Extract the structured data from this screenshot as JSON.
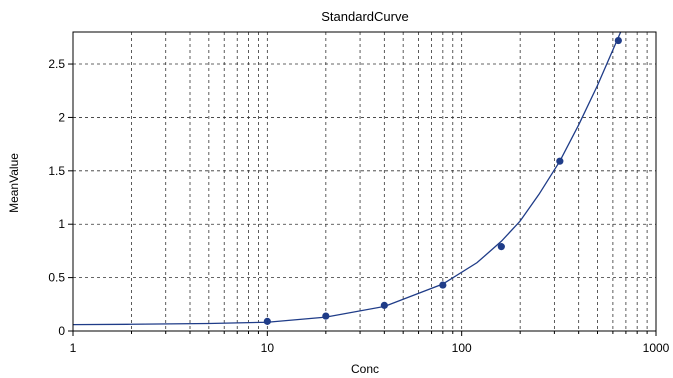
{
  "chart_data": {
    "type": "scatter",
    "title": "StandardCurve",
    "xlabel": "Conc",
    "ylabel": "MeanValue",
    "x_scale": "log",
    "xlim": [
      1,
      1000
    ],
    "ylim": [
      0,
      2.8
    ],
    "grid": true,
    "grid_style": "dashed",
    "x_ticks": [
      1,
      10,
      100,
      1000
    ],
    "x_tick_labels": [
      "1",
      "10",
      "100",
      "1000"
    ],
    "y_ticks": [
      0,
      0.5,
      1,
      1.5,
      2,
      2.5
    ],
    "y_tick_labels": [
      "0",
      "0.5",
      "1",
      "1.5",
      "2",
      "2.5"
    ],
    "series": [
      {
        "marker": "circle",
        "color": "#1f3c88",
        "x": [
          10,
          20,
          40,
          80,
          160,
          320,
          640
        ],
        "y": [
          0.09,
          0.14,
          0.24,
          0.43,
          0.79,
          1.59,
          2.72
        ]
      }
    ],
    "fit_curve": {
      "color": "#1f3c88",
      "x": [
        1,
        2,
        5,
        10,
        20,
        40,
        80,
        120,
        160,
        200,
        250,
        320,
        400,
        500,
        640,
        680
      ],
      "y": [
        0.06,
        0.063,
        0.07,
        0.082,
        0.13,
        0.23,
        0.44,
        0.64,
        0.84,
        1.03,
        1.28,
        1.59,
        1.93,
        2.3,
        2.75,
        2.86
      ]
    }
  }
}
